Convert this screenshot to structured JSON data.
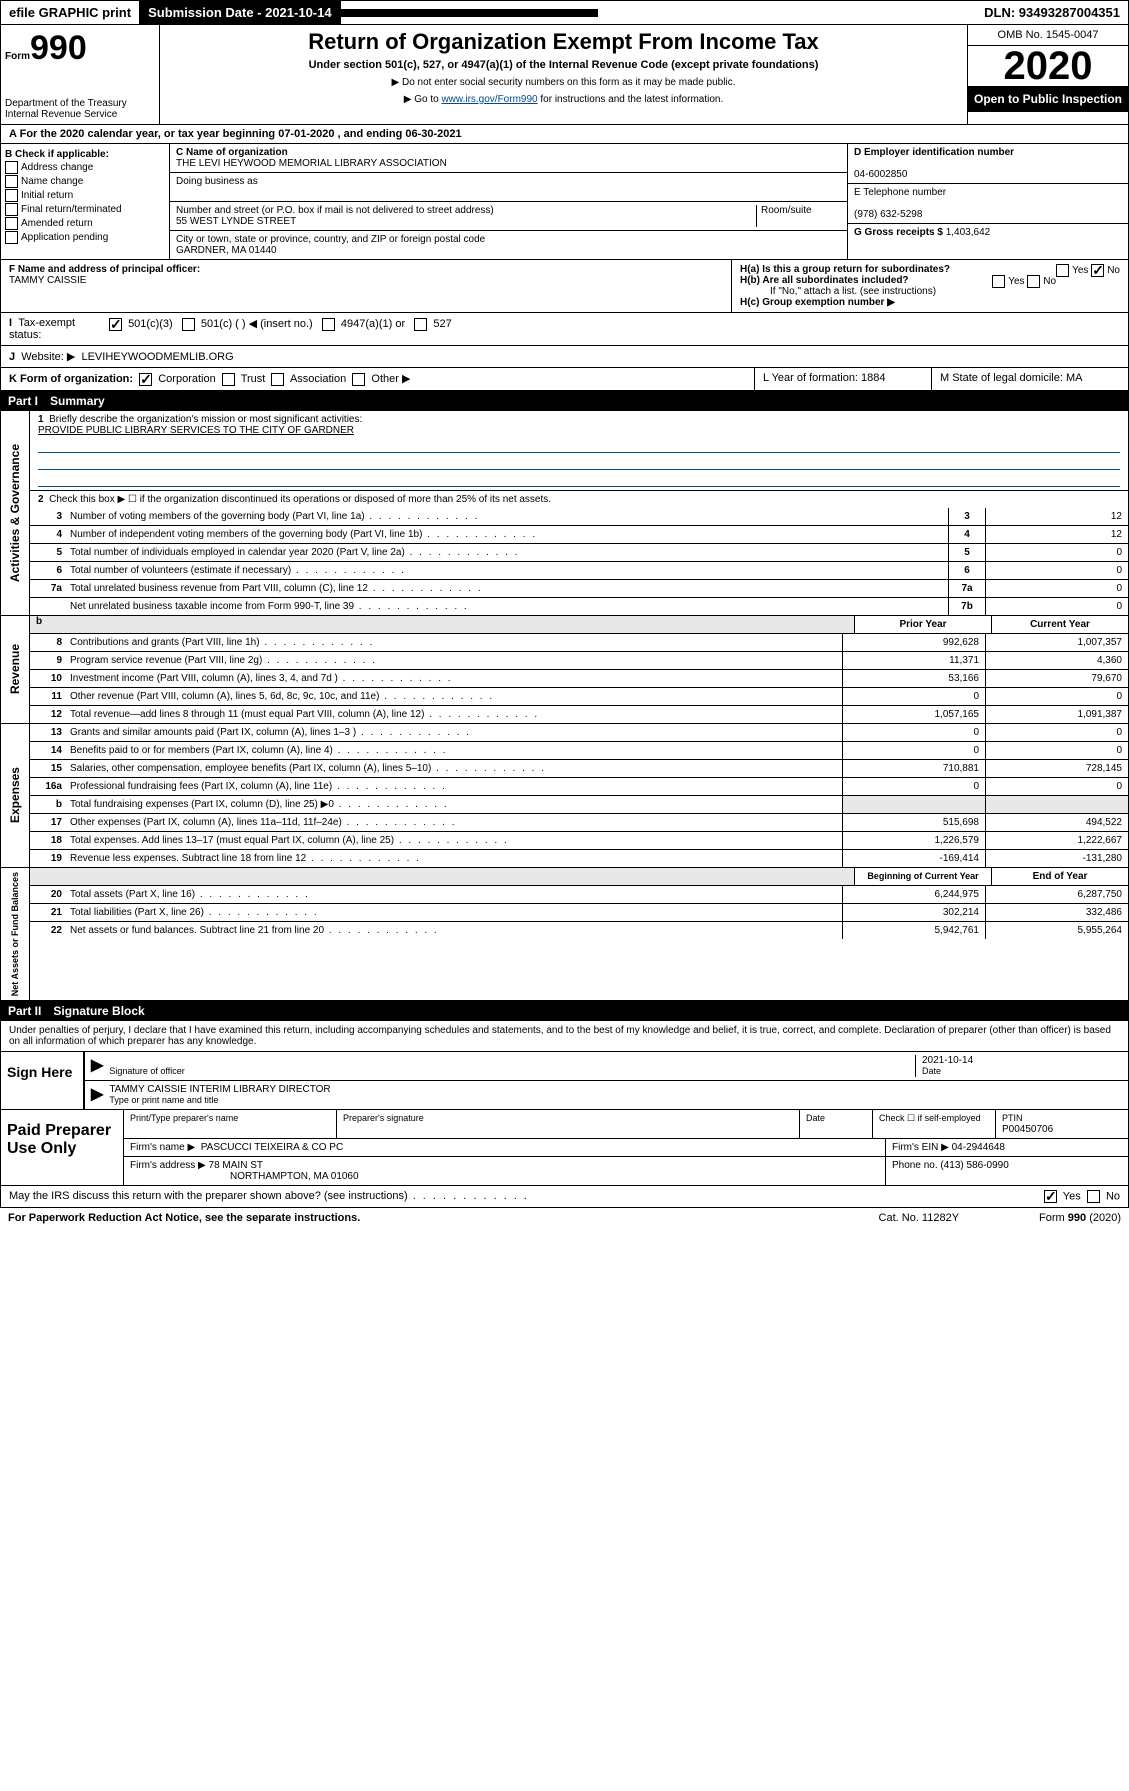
{
  "top": {
    "efile": "efile GRAPHIC print",
    "submission": "Submission Date - 2021-10-14",
    "dln": "DLN: 93493287004351"
  },
  "header": {
    "form": "Form",
    "num": "990",
    "dept": "Department of the Treasury\nInternal Revenue Service",
    "title": "Return of Organization Exempt From Income Tax",
    "sub": "Under section 501(c), 527, or 4947(a)(1) of the Internal Revenue Code (except private foundations)",
    "note1": "▶ Do not enter social security numbers on this form as it may be made public.",
    "note2_pre": "▶ Go to ",
    "note2_link": "www.irs.gov/Form990",
    "note2_post": " for instructions and the latest information.",
    "omb": "OMB No. 1545-0047",
    "year": "2020",
    "open": "Open to Public Inspection"
  },
  "period": "For the 2020 calendar year, or tax year beginning 07-01-2020    , and ending 06-30-2021",
  "B": {
    "label": "B Check if applicable:",
    "items": [
      "Address change",
      "Name change",
      "Initial return",
      "Final return/terminated",
      "Amended return",
      "Application pending"
    ]
  },
  "C": {
    "name_label": "C Name of organization",
    "name": "THE LEVI HEYWOOD MEMORIAL LIBRARY ASSOCIATION",
    "dba_label": "Doing business as",
    "addr_label": "Number and street (or P.O. box if mail is not delivered to street address)",
    "room_label": "Room/suite",
    "addr": "55 WEST LYNDE STREET",
    "city_label": "City or town, state or province, country, and ZIP or foreign postal code",
    "city": "GARDNER, MA  01440"
  },
  "D": {
    "label": "D Employer identification number",
    "val": "04-6002850"
  },
  "E": {
    "label": "E Telephone number",
    "val": "(978) 632-5298"
  },
  "G": {
    "label": "G Gross receipts $",
    "val": "1,403,642"
  },
  "F": {
    "label": "F  Name and address of principal officer:",
    "val": "TAMMY CAISSIE"
  },
  "H": {
    "a": "H(a)  Is this a group return for subordinates?",
    "b": "H(b)  Are all subordinates included?",
    "b2": "If \"No,\" attach a list. (see instructions)",
    "c": "H(c)  Group exemption number ▶"
  },
  "I": {
    "label": "Tax-exempt status:",
    "opts": [
      "501(c)(3)",
      "501(c) (  ) ◀ (insert no.)",
      "4947(a)(1) or",
      "527"
    ]
  },
  "J": {
    "label": "Website: ▶",
    "val": "LEVIHEYWOODMEMLIB.ORG"
  },
  "K": {
    "label": "K Form of organization:",
    "opts": [
      "Corporation",
      "Trust",
      "Association",
      "Other ▶"
    ],
    "L": "L Year of formation: 1884",
    "M": "M State of legal domicile: MA"
  },
  "partI": {
    "label": "Part I",
    "title": "Summary"
  },
  "gov": {
    "side": "Activities & Governance",
    "l1": "Briefly describe the organization's mission or most significant activities:",
    "mission": "PROVIDE PUBLIC LIBRARY SERVICES TO THE CITY OF GARDNER",
    "l2": "Check this box ▶ ☐  if the organization discontinued its operations or disposed of more than 25% of its net assets.",
    "rows": [
      {
        "n": "3",
        "d": "Number of voting members of the governing body (Part VI, line 1a)",
        "b": "3",
        "v": "12"
      },
      {
        "n": "4",
        "d": "Number of independent voting members of the governing body (Part VI, line 1b)",
        "b": "4",
        "v": "12"
      },
      {
        "n": "5",
        "d": "Total number of individuals employed in calendar year 2020 (Part V, line 2a)",
        "b": "5",
        "v": "0"
      },
      {
        "n": "6",
        "d": "Total number of volunteers (estimate if necessary)",
        "b": "6",
        "v": "0"
      },
      {
        "n": "7a",
        "d": "Total unrelated business revenue from Part VIII, column (C), line 12",
        "b": "7a",
        "v": "0"
      },
      {
        "n": "",
        "d": "Net unrelated business taxable income from Form 990-T, line 39",
        "b": "7b",
        "v": "0"
      }
    ]
  },
  "rev": {
    "side": "Revenue",
    "h1": "Prior Year",
    "h2": "Current Year",
    "rows": [
      {
        "n": "8",
        "d": "Contributions and grants (Part VIII, line 1h)",
        "p": "992,628",
        "c": "1,007,357"
      },
      {
        "n": "9",
        "d": "Program service revenue (Part VIII, line 2g)",
        "p": "11,371",
        "c": "4,360"
      },
      {
        "n": "10",
        "d": "Investment income (Part VIII, column (A), lines 3, 4, and 7d )",
        "p": "53,166",
        "c": "79,670"
      },
      {
        "n": "11",
        "d": "Other revenue (Part VIII, column (A), lines 5, 6d, 8c, 9c, 10c, and 11e)",
        "p": "0",
        "c": "0"
      },
      {
        "n": "12",
        "d": "Total revenue—add lines 8 through 11 (must equal Part VIII, column (A), line 12)",
        "p": "1,057,165",
        "c": "1,091,387"
      }
    ]
  },
  "exp": {
    "side": "Expenses",
    "rows": [
      {
        "n": "13",
        "d": "Grants and similar amounts paid (Part IX, column (A), lines 1–3 )",
        "p": "0",
        "c": "0"
      },
      {
        "n": "14",
        "d": "Benefits paid to or for members (Part IX, column (A), line 4)",
        "p": "0",
        "c": "0"
      },
      {
        "n": "15",
        "d": "Salaries, other compensation, employee benefits (Part IX, column (A), lines 5–10)",
        "p": "710,881",
        "c": "728,145"
      },
      {
        "n": "16a",
        "d": "Professional fundraising fees (Part IX, column (A), line 11e)",
        "p": "0",
        "c": "0"
      },
      {
        "n": "b",
        "d": "Total fundraising expenses (Part IX, column (D), line 25) ▶0",
        "p": "",
        "c": "",
        "shade": true
      },
      {
        "n": "17",
        "d": "Other expenses (Part IX, column (A), lines 11a–11d, 11f–24e)",
        "p": "515,698",
        "c": "494,522"
      },
      {
        "n": "18",
        "d": "Total expenses. Add lines 13–17 (must equal Part IX, column (A), line 25)",
        "p": "1,226,579",
        "c": "1,222,667"
      },
      {
        "n": "19",
        "d": "Revenue less expenses. Subtract line 18 from line 12",
        "p": "-169,414",
        "c": "-131,280"
      }
    ]
  },
  "net": {
    "side": "Net Assets or Fund Balances",
    "h1": "Beginning of Current Year",
    "h2": "End of Year",
    "rows": [
      {
        "n": "20",
        "d": "Total assets (Part X, line 16)",
        "p": "6,244,975",
        "c": "6,287,750"
      },
      {
        "n": "21",
        "d": "Total liabilities (Part X, line 26)",
        "p": "302,214",
        "c": "332,486"
      },
      {
        "n": "22",
        "d": "Net assets or fund balances. Subtract line 21 from line 20",
        "p": "5,942,761",
        "c": "5,955,264"
      }
    ]
  },
  "partII": {
    "label": "Part II",
    "title": "Signature Block"
  },
  "perjury": "Under penalties of perjury, I declare that I have examined this return, including accompanying schedules and statements, and to the best of my knowledge and belief, it is true, correct, and complete. Declaration of preparer (other than officer) is based on all information of which preparer has any knowledge.",
  "sign": {
    "label": "Sign Here",
    "sig": "Signature of officer",
    "date": "2021-10-14",
    "date_label": "Date",
    "name": "TAMMY CAISSIE  INTERIM LIBRARY DIRECTOR",
    "name_label": "Type or print name and title"
  },
  "paid": {
    "label": "Paid Preparer Use Only",
    "h": [
      "Print/Type preparer's name",
      "Preparer's signature",
      "Date"
    ],
    "check": "Check ☐ if self-employed",
    "ptin_label": "PTIN",
    "ptin": "P00450706",
    "firm_label": "Firm's name    ▶",
    "firm": "PASCUCCI TEIXEIRA & CO PC",
    "ein_label": "Firm's EIN ▶",
    "ein": "04-2944648",
    "addr_label": "Firm's address ▶",
    "addr": "78 MAIN ST",
    "addr2": "NORTHAMPTON, MA  01060",
    "phone_label": "Phone no.",
    "phone": "(413) 586-0990"
  },
  "discuss": "May the IRS discuss this return with the preparer shown above? (see instructions)",
  "footer": {
    "l": "For Paperwork Reduction Act Notice, see the separate instructions.",
    "c": "Cat. No. 11282Y",
    "r": "Form 990 (2020)"
  },
  "yes": "Yes",
  "no": "No"
}
